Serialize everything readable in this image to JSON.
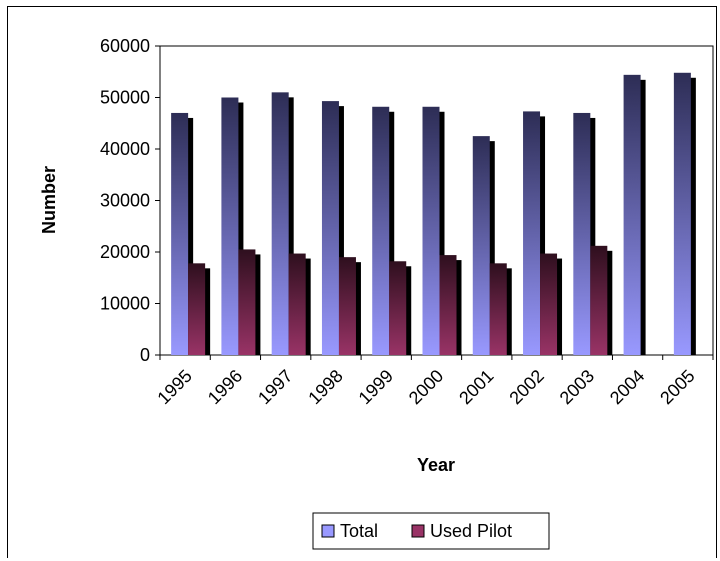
{
  "chart_data": {
    "type": "bar",
    "xlabel": "Year",
    "ylabel": "Number",
    "ylim": [
      0,
      60000
    ],
    "yticks": [
      0,
      10000,
      20000,
      30000,
      40000,
      50000,
      60000
    ],
    "categories": [
      "1995",
      "1996",
      "1997",
      "1998",
      "1999",
      "2000",
      "2001",
      "2002",
      "2003",
      "2004",
      "2005"
    ],
    "series": [
      {
        "name": "Total",
        "color": "#9999ff",
        "values": [
          47000,
          50000,
          51000,
          49300,
          48200,
          48200,
          42500,
          47300,
          47000,
          54400,
          54800
        ]
      },
      {
        "name": "Used Pilot",
        "color": "#993366",
        "values": [
          17800,
          20500,
          19700,
          19000,
          18200,
          19400,
          17800,
          19700,
          21200,
          null,
          null
        ]
      }
    ],
    "legend_position": "bottom",
    "grid": false
  }
}
